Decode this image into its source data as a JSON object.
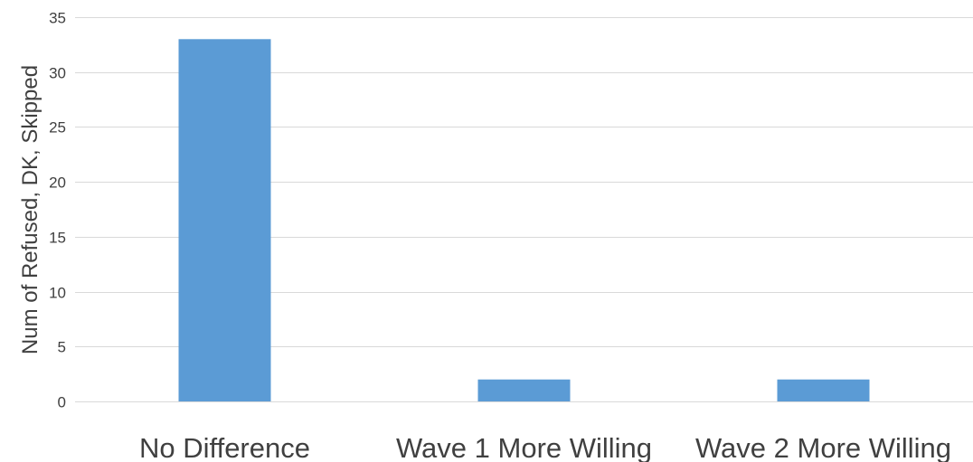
{
  "chart_data": {
    "type": "bar",
    "title": "",
    "xlabel": "",
    "ylabel": "Num of Refused, DK, Skipped",
    "categories": [
      "No Difference",
      "Wave 1 More Willing",
      "Wave 2 More Willing"
    ],
    "values": [
      33,
      2,
      2
    ],
    "ylim": [
      0,
      35
    ],
    "yticks": [
      0,
      5,
      10,
      15,
      20,
      25,
      30,
      35
    ],
    "grid": true,
    "legend": "none",
    "bar_color": "#5b9bd5"
  }
}
